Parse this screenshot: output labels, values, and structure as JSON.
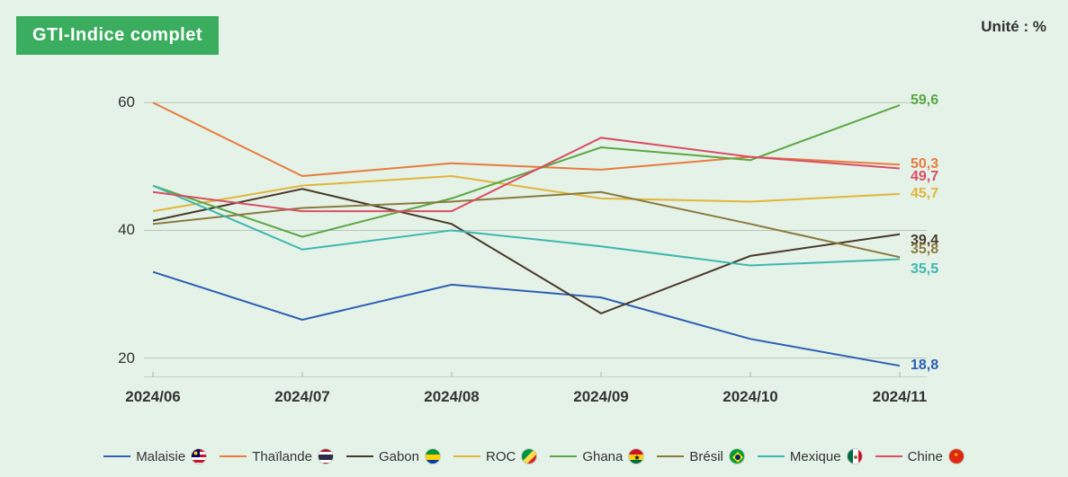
{
  "title": "GTI-Indice complet",
  "unit_label": "Unité : %",
  "chart": {
    "type": "line",
    "background_color": "#e5f2e7",
    "title_badge_bg": "#3aad5e",
    "title_badge_fg": "#ffffff",
    "axis_font_color": "#333333",
    "xlabels": [
      "2024/06",
      "2024/07",
      "2024/08",
      "2024/09",
      "2024/10",
      "2024/11"
    ],
    "ylim": [
      17,
      62
    ],
    "yticks": [
      20,
      40,
      60
    ],
    "gridline_color": "#b9c7ba",
    "axis_line_color": "#a6b4a7",
    "line_width": 2,
    "label_fontsize": 17,
    "end_label_fontsize": 16,
    "legend_fontsize": 15,
    "end_label_x_offset": 12,
    "series": [
      {
        "name": "Malaisie",
        "color": "#2d5fb4",
        "values": [
          33.5,
          26.0,
          31.5,
          29.5,
          23.0,
          18.8
        ],
        "end_label": "18,8",
        "end_label_offset": 0,
        "flag": {
          "stripes": [
            "#c8102e",
            "#ffffff",
            "#c8102e",
            "#ffffff",
            "#c8102e",
            "#ffffff"
          ],
          "canton": "#010066",
          "symbol": "#ffcc00"
        }
      },
      {
        "name": "Thaïlande",
        "color": "#e87b3f",
        "values": [
          60.0,
          48.5,
          50.5,
          49.5,
          51.5,
          50.3
        ],
        "end_label": "50,3",
        "end_label_offset": 0,
        "flag": {
          "stripes": [
            "#a51931",
            "#ffffff",
            "#2d2a4a",
            "#2d2a4a",
            "#ffffff",
            "#a51931"
          ]
        }
      },
      {
        "name": "Gabon",
        "color": "#4a3a2a",
        "values": [
          41.5,
          46.5,
          41.0,
          27.0,
          36.0,
          39.4
        ],
        "end_label": "39,4",
        "end_label_offset": 7,
        "flag": {
          "stripes": [
            "#009639",
            "#009639",
            "#ffd100",
            "#ffd100",
            "#003da5",
            "#003da5"
          ]
        }
      },
      {
        "name": "ROC",
        "color": "#e0b63c",
        "values": [
          43.0,
          47.0,
          48.5,
          45.0,
          44.5,
          45.7
        ],
        "end_label": "45,7",
        "end_label_offset": 0,
        "flag": {
          "diag": {
            "top": "#009543",
            "bottom": "#dc241f",
            "band": "#fbde4a"
          }
        }
      },
      {
        "name": "Ghana",
        "color": "#5aa744",
        "values": [
          47.0,
          39.0,
          45.0,
          53.0,
          51.0,
          59.6
        ],
        "end_label": "59,6",
        "end_label_offset": -5,
        "flag": {
          "stripes": [
            "#ce1126",
            "#ce1126",
            "#fcd116",
            "#fcd116",
            "#006b3f",
            "#006b3f"
          ],
          "star": "#000000"
        }
      },
      {
        "name": "Brésil",
        "color": "#8a7a3e",
        "values": [
          41.0,
          43.5,
          44.5,
          46.0,
          41.0,
          35.8
        ],
        "end_label": "35,8",
        "end_label_offset": -8,
        "flag": {
          "bg": "#009b3a",
          "diamond": "#ffdf00",
          "circle": "#002776"
        }
      },
      {
        "name": "Mexique",
        "color": "#3cb7b0",
        "values": [
          47.0,
          37.0,
          40.0,
          37.5,
          34.5,
          35.5
        ],
        "end_label": "35,5",
        "end_label_offset": 12,
        "flag": {
          "vbars": [
            "#006847",
            "#ffffff",
            "#ce1126"
          ],
          "emblem": "#8a6d3b"
        }
      },
      {
        "name": "Chine",
        "color": "#da4e64",
        "values": [
          46.0,
          43.0,
          43.0,
          54.5,
          51.5,
          49.7
        ],
        "end_label": "49,7",
        "end_label_offset": 10,
        "flag": {
          "bg": "#de2910",
          "stars": "#ffde00"
        }
      }
    ]
  }
}
